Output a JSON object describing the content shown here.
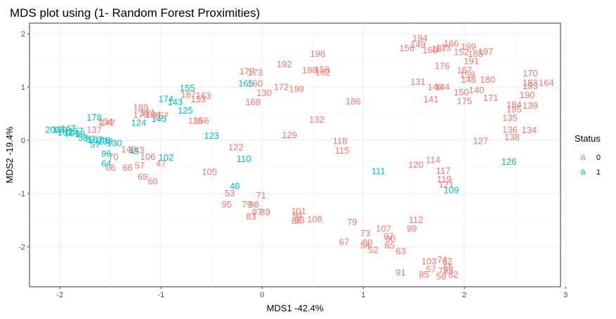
{
  "chart_data": {
    "type": "scatter",
    "title": "MDS plot using (1- Random Forest Proximities)",
    "xlabel": "MDS1 -42.4%",
    "ylabel": "MDS2 -19.4%",
    "xlim": [
      -2.3,
      2.95
    ],
    "ylim": [
      -2.75,
      2.2
    ],
    "x_ticks": [
      -2,
      -1,
      0,
      1,
      2,
      3
    ],
    "y_ticks": [
      -2,
      -1,
      0,
      1,
      2
    ],
    "grid": true,
    "legend": {
      "title": "Status",
      "position": "right",
      "glyph": "a",
      "entries": [
        {
          "label": "0",
          "color": "#F8766D"
        },
        {
          "label": "1",
          "color": "#00BFC4"
        }
      ]
    },
    "series": [
      {
        "name": "0",
        "color": "#F8766D",
        "points": [
          {
            "x": 1.56,
            "y": 1.92,
            "label": "194"
          },
          {
            "x": 1.87,
            "y": 1.82,
            "label": "166"
          },
          {
            "x": 1.43,
            "y": 1.73,
            "label": "156"
          },
          {
            "x": 1.54,
            "y": 1.8,
            "label": "149"
          },
          {
            "x": 1.79,
            "y": 1.74,
            "label": "173"
          },
          {
            "x": 1.75,
            "y": 1.72,
            "label": "187"
          },
          {
            "x": 1.66,
            "y": 1.69,
            "label": "160"
          },
          {
            "x": 2.04,
            "y": 1.76,
            "label": "199"
          },
          {
            "x": 2.21,
            "y": 1.67,
            "label": "197"
          },
          {
            "x": 1.97,
            "y": 1.66,
            "label": "152"
          },
          {
            "x": 2.11,
            "y": 1.63,
            "label": "185"
          },
          {
            "x": 2.07,
            "y": 1.49,
            "label": "191"
          },
          {
            "x": 1.78,
            "y": 1.4,
            "label": "176"
          },
          {
            "x": 2.0,
            "y": 1.32,
            "label": "167"
          },
          {
            "x": 2.03,
            "y": 1.23,
            "label": "159"
          },
          {
            "x": 2.04,
            "y": 1.14,
            "label": "148"
          },
          {
            "x": 2.23,
            "y": 1.14,
            "label": "180"
          },
          {
            "x": 2.65,
            "y": 1.26,
            "label": "170"
          },
          {
            "x": 2.65,
            "y": 1.08,
            "label": "183"
          },
          {
            "x": 2.81,
            "y": 1.08,
            "label": "164"
          },
          {
            "x": 2.65,
            "y": 1.02,
            "label": "193"
          },
          {
            "x": 2.62,
            "y": 0.85,
            "label": "190"
          },
          {
            "x": 1.54,
            "y": 1.1,
            "label": "131"
          },
          {
            "x": 1.71,
            "y": 1.0,
            "label": "146"
          },
          {
            "x": 1.78,
            "y": 1.0,
            "label": "144"
          },
          {
            "x": 2.12,
            "y": 0.94,
            "label": "140"
          },
          {
            "x": 1.97,
            "y": 0.9,
            "label": "150"
          },
          {
            "x": 2.26,
            "y": 0.8,
            "label": "171"
          },
          {
            "x": 1.67,
            "y": 0.77,
            "label": "141"
          },
          {
            "x": 2.0,
            "y": 0.74,
            "label": "175"
          },
          {
            "x": 2.49,
            "y": 0.67,
            "label": "184"
          },
          {
            "x": 2.65,
            "y": 0.65,
            "label": "139"
          },
          {
            "x": 2.49,
            "y": 0.58,
            "label": "195"
          },
          {
            "x": 2.45,
            "y": 0.42,
            "label": "135"
          },
          {
            "x": 2.45,
            "y": 0.2,
            "label": "136"
          },
          {
            "x": 2.64,
            "y": 0.19,
            "label": "134"
          },
          {
            "x": 2.47,
            "y": 0.06,
            "label": "138"
          },
          {
            "x": 2.16,
            "y": -0.01,
            "label": "127"
          },
          {
            "x": 0.55,
            "y": 1.63,
            "label": "196"
          },
          {
            "x": 0.22,
            "y": 1.43,
            "label": "192"
          },
          {
            "x": 0.47,
            "y": 1.32,
            "label": "198"
          },
          {
            "x": 0.59,
            "y": 1.33,
            "label": "158"
          },
          {
            "x": 0.6,
            "y": 1.28,
            "label": "162"
          },
          {
            "x": -0.15,
            "y": 1.3,
            "label": "179"
          },
          {
            "x": -0.07,
            "y": 1.27,
            "label": "173"
          },
          {
            "x": -0.07,
            "y": 1.07,
            "label": "160"
          },
          {
            "x": 0.19,
            "y": 1.0,
            "label": "172"
          },
          {
            "x": 0.34,
            "y": 0.96,
            "label": "199"
          },
          {
            "x": 0.02,
            "y": 0.89,
            "label": "130"
          },
          {
            "x": -0.09,
            "y": 0.72,
            "label": "168"
          },
          {
            "x": 0.9,
            "y": 0.73,
            "label": "186"
          },
          {
            "x": -0.73,
            "y": 0.86,
            "label": "187"
          },
          {
            "x": -0.58,
            "y": 0.84,
            "label": "163"
          },
          {
            "x": -0.63,
            "y": 0.77,
            "label": "153"
          },
          {
            "x": -1.2,
            "y": 0.62,
            "label": "189"
          },
          {
            "x": -1.13,
            "y": 0.52,
            "label": "181"
          },
          {
            "x": -1.2,
            "y": 0.48,
            "label": "175"
          },
          {
            "x": -1.08,
            "y": 0.48,
            "label": "184"
          },
          {
            "x": -1.0,
            "y": 0.46,
            "label": "157"
          },
          {
            "x": -0.66,
            "y": 0.37,
            "label": "116"
          },
          {
            "x": -0.6,
            "y": 0.37,
            "label": "156"
          },
          {
            "x": -1.55,
            "y": 0.35,
            "label": "154"
          },
          {
            "x": -1.53,
            "y": 0.33,
            "label": "142"
          },
          {
            "x": -1.66,
            "y": 0.2,
            "label": "137"
          },
          {
            "x": 0.54,
            "y": 0.39,
            "label": "132"
          },
          {
            "x": 0.27,
            "y": 0.1,
            "label": "129"
          },
          {
            "x": 0.77,
            "y": -0.01,
            "label": "118"
          },
          {
            "x": 0.79,
            "y": -0.19,
            "label": "115"
          },
          {
            "x": -0.26,
            "y": -0.13,
            "label": "122"
          },
          {
            "x": -1.32,
            "y": -0.17,
            "label": "149"
          },
          {
            "x": -1.24,
            "y": -0.18,
            "label": "143"
          },
          {
            "x": -1.47,
            "y": -0.31,
            "label": "70"
          },
          {
            "x": -1.13,
            "y": -0.31,
            "label": "106"
          },
          {
            "x": -1.0,
            "y": -0.43,
            "label": "47"
          },
          {
            "x": -1.33,
            "y": -0.51,
            "label": "66"
          },
          {
            "x": -1.5,
            "y": -0.51,
            "label": "66"
          },
          {
            "x": -1.21,
            "y": -0.47,
            "label": "57"
          },
          {
            "x": -1.18,
            "y": -0.68,
            "label": "69"
          },
          {
            "x": -1.08,
            "y": -0.77,
            "label": "60"
          },
          {
            "x": -0.52,
            "y": -0.59,
            "label": "105"
          },
          {
            "x": 1.69,
            "y": -0.37,
            "label": "114"
          },
          {
            "x": 1.52,
            "y": -0.46,
            "label": "120"
          },
          {
            "x": 1.79,
            "y": -0.57,
            "label": "117"
          },
          {
            "x": 1.8,
            "y": -0.73,
            "label": "119"
          },
          {
            "x": 1.82,
            "y": -0.83,
            "label": "121"
          },
          {
            "x": -0.32,
            "y": -0.99,
            "label": "53"
          },
          {
            "x": -0.01,
            "y": -1.03,
            "label": "71"
          },
          {
            "x": -0.35,
            "y": -1.2,
            "label": "95"
          },
          {
            "x": -0.15,
            "y": -1.2,
            "label": "79"
          },
          {
            "x": -0.08,
            "y": -1.2,
            "label": "98"
          },
          {
            "x": -0.05,
            "y": -1.35,
            "label": "97"
          },
          {
            "x": 0.03,
            "y": -1.35,
            "label": "89"
          },
          {
            "x": -0.11,
            "y": -1.43,
            "label": "83"
          },
          {
            "x": 0.37,
            "y": -1.5,
            "label": "93"
          },
          {
            "x": 0.36,
            "y": -1.33,
            "label": "101"
          },
          {
            "x": 0.35,
            "y": -1.41,
            "label": "94"
          },
          {
            "x": 0.34,
            "y": -1.51,
            "label": "88"
          },
          {
            "x": 0.52,
            "y": -1.48,
            "label": "108"
          },
          {
            "x": 0.89,
            "y": -1.53,
            "label": "79"
          },
          {
            "x": 1.52,
            "y": -1.49,
            "label": "112"
          },
          {
            "x": 1.48,
            "y": -1.66,
            "label": "99"
          },
          {
            "x": 1.2,
            "y": -1.66,
            "label": "107"
          },
          {
            "x": 1.02,
            "y": -1.74,
            "label": "73"
          },
          {
            "x": 1.25,
            "y": -1.8,
            "label": "97"
          },
          {
            "x": 1.27,
            "y": -1.85,
            "label": "90"
          },
          {
            "x": 0.81,
            "y": -1.91,
            "label": "67"
          },
          {
            "x": 1.04,
            "y": -1.92,
            "label": "80"
          },
          {
            "x": 1.02,
            "y": -1.97,
            "label": "54"
          },
          {
            "x": 1.26,
            "y": -1.97,
            "label": "65"
          },
          {
            "x": 1.1,
            "y": -2.06,
            "label": "52"
          },
          {
            "x": 1.37,
            "y": -2.08,
            "label": "63"
          },
          {
            "x": 1.78,
            "y": -2.24,
            "label": "74"
          },
          {
            "x": 1.65,
            "y": -2.27,
            "label": "103"
          },
          {
            "x": 1.83,
            "y": -2.27,
            "label": "62"
          },
          {
            "x": 1.84,
            "y": -2.38,
            "label": "55"
          },
          {
            "x": 1.67,
            "y": -2.42,
            "label": "57"
          },
          {
            "x": 1.79,
            "y": -2.45,
            "label": "78"
          },
          {
            "x": 1.84,
            "y": -2.45,
            "label": "75"
          },
          {
            "x": 1.37,
            "y": -2.48,
            "label": "91"
          },
          {
            "x": 1.6,
            "y": -2.52,
            "label": "85"
          },
          {
            "x": 1.89,
            "y": -2.52,
            "label": "82"
          },
          {
            "x": 1.77,
            "y": -2.55,
            "label": "58"
          }
        ]
      },
      {
        "name": "1",
        "color": "#00BFC4",
        "points": [
          {
            "x": -0.74,
            "y": 0.98,
            "label": "155"
          },
          {
            "x": -0.16,
            "y": 1.07,
            "label": "165"
          },
          {
            "x": -0.95,
            "y": 0.78,
            "label": "174"
          },
          {
            "x": -0.86,
            "y": 0.72,
            "label": "143"
          },
          {
            "x": -0.76,
            "y": 0.56,
            "label": "125"
          },
          {
            "x": -1.02,
            "y": 0.4,
            "label": "145"
          },
          {
            "x": -1.22,
            "y": 0.33,
            "label": "124"
          },
          {
            "x": -1.66,
            "y": 0.43,
            "label": "178"
          },
          {
            "x": -0.5,
            "y": 0.09,
            "label": "123"
          },
          {
            "x": -2.07,
            "y": 0.2,
            "label": "200"
          },
          {
            "x": -2.0,
            "y": 0.2,
            "label": "100"
          },
          {
            "x": -1.92,
            "y": 0.22,
            "label": "147"
          },
          {
            "x": -1.84,
            "y": 0.17,
            "label": "157"
          },
          {
            "x": -1.95,
            "y": 0.15,
            "label": "102"
          },
          {
            "x": -1.88,
            "y": 0.13,
            "label": "101"
          },
          {
            "x": -1.8,
            "y": 0.12,
            "label": "99"
          },
          {
            "x": -1.77,
            "y": 0.05,
            "label": "58"
          },
          {
            "x": -1.65,
            "y": 0.01,
            "label": "167"
          },
          {
            "x": -1.58,
            "y": 0.0,
            "label": "146"
          },
          {
            "x": -1.7,
            "y": 0.03,
            "label": "92"
          },
          {
            "x": -1.55,
            "y": -0.02,
            "label": "138"
          },
          {
            "x": -1.46,
            "y": -0.05,
            "label": "130"
          },
          {
            "x": -1.65,
            "y": -0.08,
            "label": "57"
          },
          {
            "x": -1.54,
            "y": -0.25,
            "label": "96"
          },
          {
            "x": -1.27,
            "y": -0.2,
            "label": "43"
          },
          {
            "x": -0.95,
            "y": -0.32,
            "label": "102"
          },
          {
            "x": -1.54,
            "y": -0.43,
            "label": "64"
          },
          {
            "x": -0.18,
            "y": -0.35,
            "label": "110"
          },
          {
            "x": -0.27,
            "y": -0.86,
            "label": "48"
          },
          {
            "x": 1.15,
            "y": -0.58,
            "label": "111"
          },
          {
            "x": 2.44,
            "y": -0.4,
            "label": "126"
          },
          {
            "x": 1.87,
            "y": -0.93,
            "label": "109"
          }
        ]
      }
    ]
  }
}
